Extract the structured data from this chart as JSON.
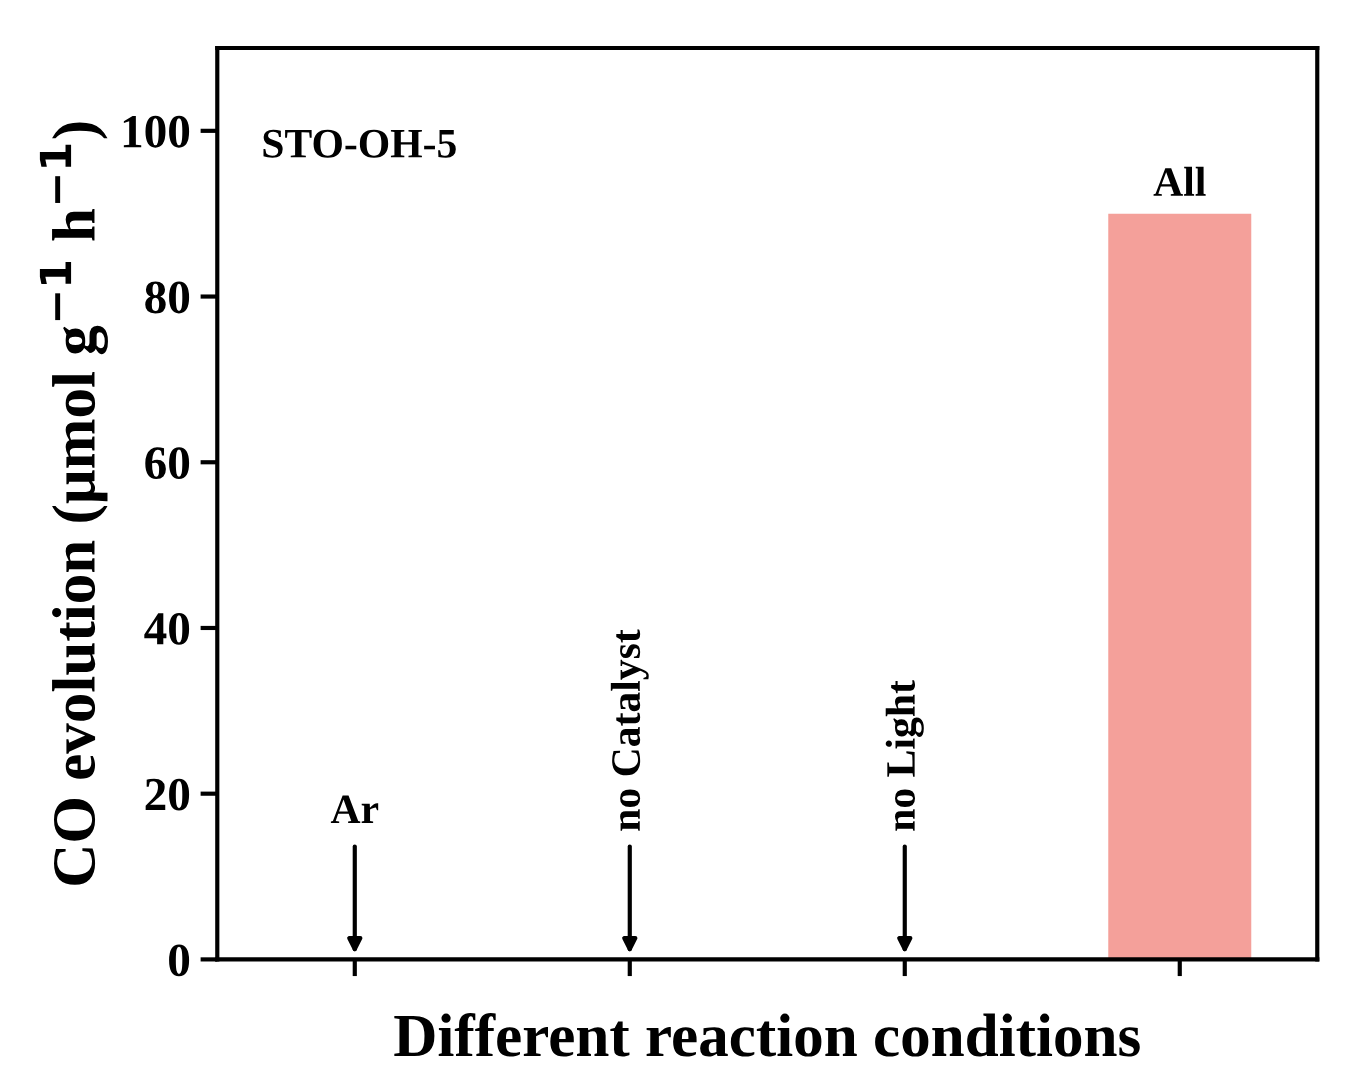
{
  "chart_data": {
    "type": "bar",
    "categories": [
      "Ar",
      "no Catalyst",
      "no Light",
      "All"
    ],
    "values": [
      0,
      0,
      0,
      90
    ],
    "color": "#f4a09a",
    "ylim": [
      0,
      110
    ],
    "yticks": [
      0,
      20,
      40,
      60,
      80,
      100
    ],
    "xlabel": "Different reaction conditions",
    "ylabel": "CO evolution (μmol g$^{−1}$ h$^{−1}$)",
    "annotations": [
      "STO-OH-5"
    ],
    "grid": false,
    "legend": false
  }
}
